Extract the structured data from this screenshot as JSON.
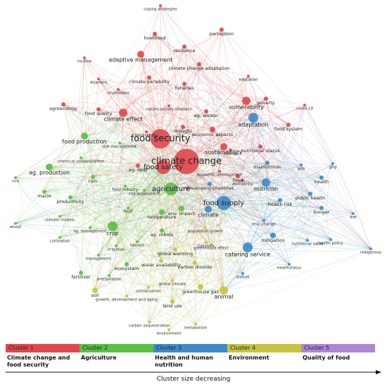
{
  "clusters": [
    {
      "label": "Cluster 1",
      "description": "Climate change and food security",
      "color": "#e0474c",
      "nodes": [
        "coping strategies",
        "livelihood",
        "perception",
        "income",
        "adaptive management",
        "resilience",
        "climate change adaptation",
        "disasters",
        "fisheries",
        "climate variability",
        "smallholder",
        "education",
        "poverty",
        "vulnerability",
        "covid-19",
        "agroecology",
        "food quality",
        "nature-society relations",
        "ag. worker",
        "climate effect",
        "food system",
        "drought",
        "economic aspects",
        "biodiversity",
        "food security",
        "sustainability",
        "nutritional status",
        "ecology",
        "climate change",
        "food safety",
        "ag. land",
        "economic development",
        "food",
        "availability"
      ]
    },
    {
      "label": "Cluster 2",
      "description": "Agriculture",
      "color": "#5cbf46",
      "nodes": [
        "food production",
        "risk management",
        "chemical contamination",
        "ag. production",
        "rain",
        "rice",
        "agriculture",
        "food industry",
        "risk assessment",
        "maize",
        "productivity",
        "temperature",
        "env. impact",
        "food",
        "climate models",
        "wheat",
        "crop",
        "ag. management",
        "cultivation",
        "ag. robots",
        "irrigation",
        "harvest",
        "management",
        "ecosystem",
        "fertilizer",
        "precipitation"
      ]
    },
    {
      "label": "Cluster 3",
      "description": "Health and human nutrition",
      "color": "#3f8acb",
      "nodes": [
        "adaptation",
        "malnutrition",
        "gdp",
        "ghg",
        "health",
        "nutrition",
        "public health",
        "developing countries",
        "health risk",
        "food supply",
        "climate",
        "hunger",
        "diet",
        "env. change",
        "health policy",
        "mitigation",
        "nutritional value",
        "catering service",
        "indigenous",
        "healthstatus",
        "biofuel"
      ]
    },
    {
      "label": "Cluster 4",
      "description": "Environment",
      "color": "#c6c440",
      "nodes": [
        "population growth",
        "global warming",
        "livestock",
        "greenhouse effect",
        "water availability",
        "carbon dioxide",
        "greenhouse gas",
        "animal",
        "soil",
        "growth, development and aging",
        "conservation",
        "global climate",
        "land use",
        "carbon sequestration",
        "metabolism",
        "environment"
      ]
    },
    {
      "label": "Cluster 5",
      "description": "Quality of food",
      "color": "#ad87d6",
      "nodes": []
    }
  ],
  "footer": {
    "arrow_label": "Cluster size decreasing"
  }
}
